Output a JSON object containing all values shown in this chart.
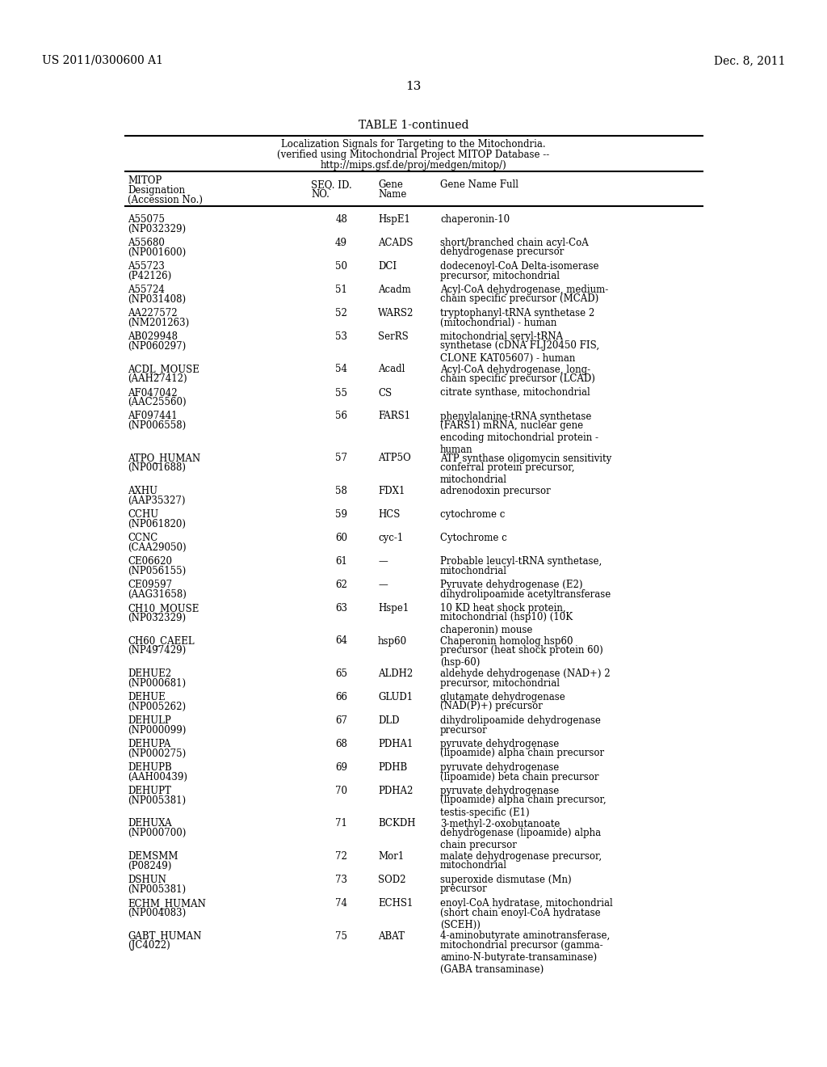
{
  "header_left": "US 2011/0300600 A1",
  "header_right": "Dec. 8, 2011",
  "page_number": "13",
  "table_title": "TABLE 1-continued",
  "table_subtitle_lines": [
    "Localization Signals for Targeting to the Mitochondria.",
    "(verified using Mitochondrial Project MITOP Database --",
    "http://mips.gsf.de/proj/medgen/mitop/)"
  ],
  "rows": [
    [
      "A55075",
      "(NP032329)",
      "48",
      "HspE1",
      "chaperonin-10",
      ""
    ],
    [
      "A55680",
      "(NP001600)",
      "49",
      "ACADS",
      "short/branched chain acyl-CoA",
      "dehydrogenase precursor"
    ],
    [
      "A55723",
      "(P42126)",
      "50",
      "DCI",
      "dodecenoyl-CoA Delta-isomerase",
      "precursor, mitochondrial"
    ],
    [
      "A55724",
      "(NP031408)",
      "51",
      "Acadm",
      "Acyl-CoA dehydrogenase, medium-",
      "chain specific precursor (MCAD)"
    ],
    [
      "AA227572",
      "(NM201263)",
      "52",
      "WARS2",
      "tryptophanyl-tRNA synthetase 2",
      "(mitochondrial) - human"
    ],
    [
      "AB029948",
      "(NP060297)",
      "53",
      "SerRS",
      "mitochondrial seryl-tRNA",
      "synthetase (cDNA FLJ20450 FIS,\nCLONE KAT05607) - human"
    ],
    [
      "ACDL_MOUSE",
      "(AAH27412)",
      "54",
      "Acadl",
      "Acyl-CoA dehydrogenase, long-",
      "chain specific precursor (LCAD)"
    ],
    [
      "AF047042",
      "(AAC25560)",
      "55",
      "CS",
      "citrate synthase, mitochondrial",
      ""
    ],
    [
      "AF097441",
      "(NP006558)",
      "56",
      "FARS1",
      "phenylalanine-tRNA synthetase",
      "(FARS1) mRNA, nuclear gene\nencoding mitochondrial protein -\nhuman"
    ],
    [
      "ATPO_HUMAN",
      "(NP001688)",
      "57",
      "ATP5O",
      "ATP synthase oligomycin sensitivity",
      "conferral protein precursor,\nmitochondrial"
    ],
    [
      "AXHU",
      "(AAP35327)",
      "58",
      "FDX1",
      "adrenodoxin precursor",
      ""
    ],
    [
      "CCHU",
      "(NP061820)",
      "59",
      "HCS",
      "cytochrome c",
      ""
    ],
    [
      "CCNC",
      "(CAA29050)",
      "60",
      "cyc-1",
      "Cytochrome c",
      ""
    ],
    [
      "CE06620",
      "(NP056155)",
      "61",
      "—",
      "Probable leucyl-tRNA synthetase,",
      "mitochondrial"
    ],
    [
      "CE09597",
      "(AAG31658)",
      "62",
      "—",
      "Pyruvate dehydrogenase (E2)",
      "dihydrolipoamide acetyltransferase"
    ],
    [
      "CH10_MOUSE",
      "(NP032329)",
      "63",
      "Hspe1",
      "10 KD heat shock protein,",
      "mitochondrial (hsp10) (10K\nchaperonin) mouse"
    ],
    [
      "CH60_CAEEL",
      "(NP497429)",
      "64",
      "hsp60",
      "Chaperonin homolog hsp60",
      "precursor (heat shock protein 60)\n(hsp-60)"
    ],
    [
      "DEHUE2",
      "(NP000681)",
      "65",
      "ALDH2",
      "aldehyde dehydrogenase (NAD+) 2",
      "precursor, mitochondrial"
    ],
    [
      "DEHUE",
      "(NP005262)",
      "66",
      "GLUD1",
      "glutamate dehydrogenase",
      "(NAD(P)+) precursor"
    ],
    [
      "DEHULP",
      "(NP000099)",
      "67",
      "DLD",
      "dihydrolipoamide dehydrogenase",
      "precursor"
    ],
    [
      "DEHUPA",
      "(NP000275)",
      "68",
      "PDHA1",
      "pyruvate dehydrogenase",
      "(lipoamide) alpha chain precursor"
    ],
    [
      "DEHUPB",
      "(AAH00439)",
      "69",
      "PDHB",
      "pyruvate dehydrogenase",
      "(lipoamide) beta chain precursor"
    ],
    [
      "DEHUPT",
      "(NP005381)",
      "70",
      "PDHA2",
      "pyruvate dehydrogenase",
      "(lipoamide) alpha chain precursor,\ntestis-specific (E1)"
    ],
    [
      "DEHUXA",
      "(NP000700)",
      "71",
      "BCKDH",
      "3-methyl-2-oxobutanoate",
      "dehydrogenase (lipoamide) alpha\nchain precursor"
    ],
    [
      "DEMSMM",
      "(P08249)",
      "72",
      "Mor1",
      "malate dehydrogenase precursor,",
      "mitochondrial"
    ],
    [
      "DSHUN",
      "(NP005381)",
      "73",
      "SOD2",
      "superoxide dismutase (Mn)",
      "precursor"
    ],
    [
      "ECHM_HUMAN",
      "(NP004083)",
      "74",
      "ECHS1",
      "enoyl-CoA hydratase, mitochondrial",
      "(short chain enoyl-CoA hydratase\n(SCEH))"
    ],
    [
      "GABT_HUMAN",
      "(JC4022)",
      "75",
      "ABAT",
      "4-aminobutyrate aminotransferase,",
      "mitochondrial precursor (gamma-\namino-N-butyrate-transaminase)\n(GABA transaminase)"
    ]
  ],
  "background_color": "#ffffff",
  "text_color": "#000000"
}
